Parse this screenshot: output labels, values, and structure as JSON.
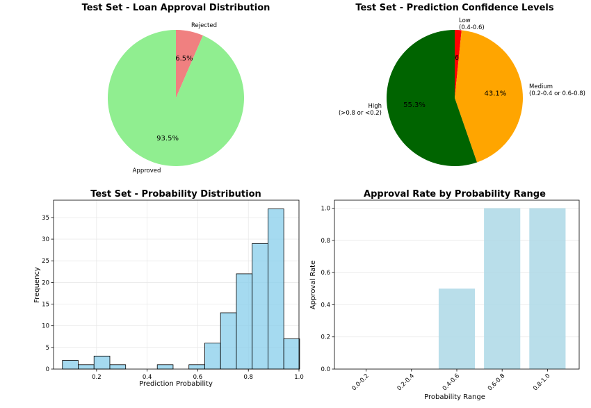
{
  "chart_data": [
    {
      "type": "pie",
      "title": "Test Set - Loan Approval Distribution",
      "labels": [
        "Rejected",
        "Approved"
      ],
      "values": [
        6.5,
        93.5
      ],
      "pct_labels": [
        "6.5%",
        "93.5%"
      ],
      "colors": [
        "#f08080",
        "#90ee90"
      ],
      "start_angle_deg": 90,
      "direction": "clockwise"
    },
    {
      "type": "pie",
      "title": "Test Set - Prediction Confidence Levels",
      "labels": [
        [
          "Low",
          "(0.4-0.6)"
        ],
        [
          "Medium",
          "(0.2-0.4 or 0.6-0.8)"
        ],
        [
          "High",
          "(>0.8 or <0.2)"
        ]
      ],
      "values": [
        1.6,
        43.1,
        55.3
      ],
      "pct_labels": [
        "1.6%",
        "43.1%",
        "55.3%"
      ],
      "colors": [
        "#ff0000",
        "#ffa500",
        "#006400"
      ],
      "start_angle_deg": 90,
      "direction": "clockwise"
    },
    {
      "type": "bar",
      "subtype": "histogram",
      "title": "Test Set - Probability Distribution",
      "xlabel": "Prediction Probability",
      "ylabel": "Frequency",
      "xlim": [
        0.03,
        1.0
      ],
      "ylim": [
        0,
        39
      ],
      "xticks": [
        0.2,
        0.4,
        0.6,
        0.8,
        1.0
      ],
      "xtick_labels": [
        "0.2",
        "0.4",
        "0.6",
        "0.8",
        "1.0"
      ],
      "yticks": [
        0,
        5,
        10,
        15,
        20,
        25,
        30,
        35
      ],
      "bin_edges": [
        0.065,
        0.1275,
        0.19,
        0.2525,
        0.315,
        0.3775,
        0.44,
        0.5025,
        0.565,
        0.6275,
        0.69,
        0.7525,
        0.815,
        0.8775,
        0.94,
        1.0025
      ],
      "counts": [
        2,
        1,
        3,
        1,
        0,
        0,
        1,
        0,
        1,
        6,
        13,
        22,
        29,
        37,
        7
      ],
      "color": "#87ceeb",
      "grid": true
    },
    {
      "type": "bar",
      "title": "Approval Rate by Probability Range",
      "xlabel": "Probability Range",
      "ylabel": "Approval Rate",
      "categories": [
        "0.0-0.2",
        "0.2-0.4",
        "0.4-0.6",
        "0.6-0.8",
        "0.8-1.0"
      ],
      "values": [
        0.0,
        0.0,
        0.5,
        1.0,
        1.0
      ],
      "ylim": [
        0,
        1.05
      ],
      "yticks": [
        0.0,
        0.2,
        0.4,
        0.6,
        0.8,
        1.0
      ],
      "ytick_labels": [
        "0.0",
        "0.2",
        "0.4",
        "0.6",
        "0.8",
        "1.0"
      ],
      "color": "#add8e6",
      "grid": true
    }
  ]
}
